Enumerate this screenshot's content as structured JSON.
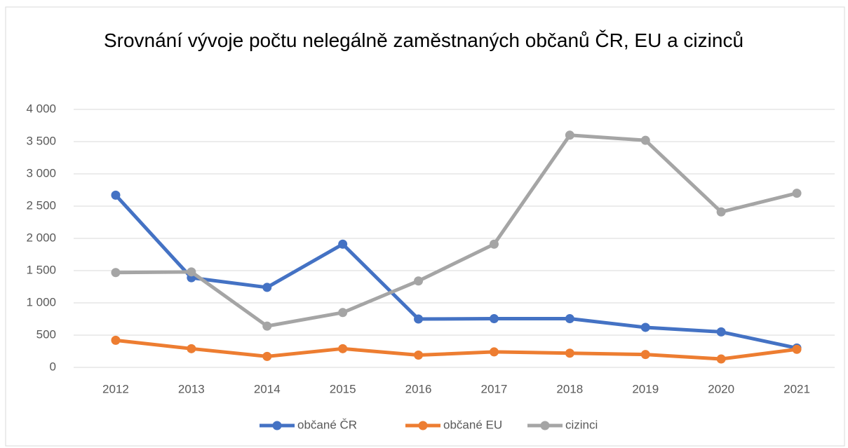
{
  "chart_data": {
    "type": "line",
    "title": "Srovnání vývoje počtu nelegálně zaměstnaných občanů ČR, EU a cizinců",
    "categories": [
      "2012",
      "2013",
      "2014",
      "2015",
      "2016",
      "2017",
      "2018",
      "2019",
      "2020",
      "2021"
    ],
    "series": [
      {
        "name": "občané ČR",
        "color": "#4472c4",
        "values": [
          2670,
          1390,
          1240,
          1910,
          750,
          755,
          755,
          620,
          550,
          300
        ]
      },
      {
        "name": "občané EU",
        "color": "#ed7d31",
        "values": [
          420,
          290,
          170,
          290,
          190,
          240,
          220,
          200,
          130,
          280
        ]
      },
      {
        "name": "cizinci",
        "color": "#a5a5a5",
        "values": [
          1470,
          1480,
          640,
          850,
          1340,
          1910,
          3600,
          3520,
          2410,
          2700
        ]
      }
    ],
    "ylim": [
      0,
      4000
    ],
    "yticks": [
      0,
      500,
      {
        "value": 1000,
        "label": "1 000"
      },
      {
        "value": 1500,
        "label": "1 500"
      },
      {
        "value": 2000,
        "label": "2 000"
      },
      {
        "value": 2500,
        "label": "2 500"
      },
      {
        "value": 3000,
        "label": "3 000"
      },
      {
        "value": 3500,
        "label": "3 500"
      },
      {
        "value": 4000,
        "label": "4 000"
      }
    ],
    "grid": true,
    "legend": "bottom"
  }
}
